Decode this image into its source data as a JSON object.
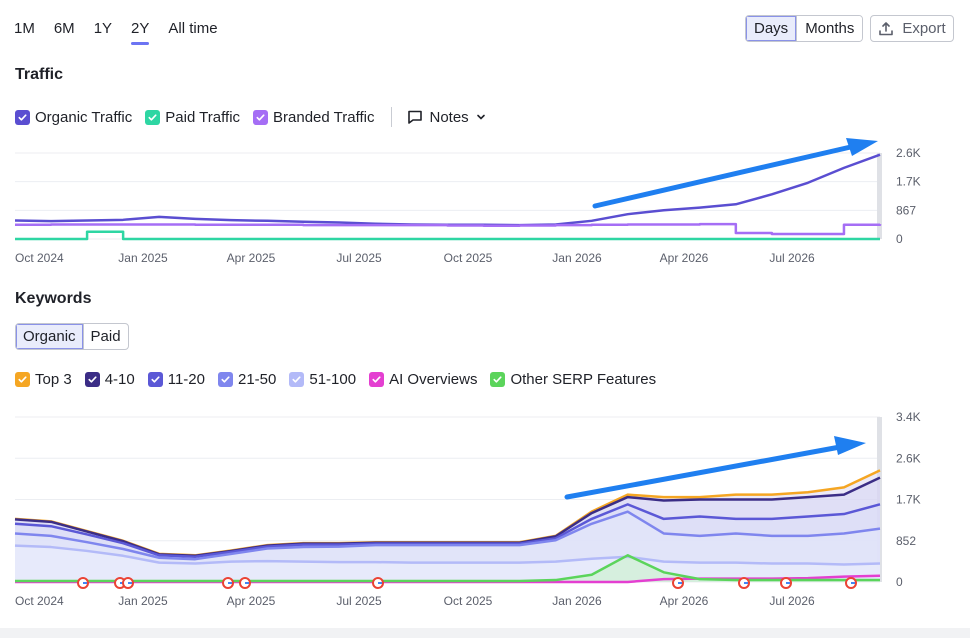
{
  "range_tabs": [
    "1M",
    "6M",
    "1Y",
    "2Y",
    "All time"
  ],
  "active_range": "2Y",
  "granularity": {
    "days": "Days",
    "months": "Months",
    "active": "Days"
  },
  "export_label": "Export",
  "traffic": {
    "title": "Traffic",
    "legend": [
      {
        "label": "Organic Traffic",
        "color": "#5a4ed1"
      },
      {
        "label": "Paid Traffic",
        "color": "#2ed6a3"
      },
      {
        "label": "Branded Traffic",
        "color": "#a56ef5"
      }
    ],
    "notes_label": "Notes"
  },
  "keywords": {
    "title": "Keywords",
    "tabs": [
      "Organic",
      "Paid"
    ],
    "active_tab": "Organic",
    "legend": [
      {
        "label": "Top 3",
        "color": "#f5a623"
      },
      {
        "label": "4-10",
        "color": "#3b2d86"
      },
      {
        "label": "11-20",
        "color": "#5b58d6"
      },
      {
        "label": "21-50",
        "color": "#7f86ee"
      },
      {
        "label": "51-100",
        "color": "#b3baf8"
      },
      {
        "label": "AI Overviews",
        "color": "#e43fd1"
      },
      {
        "label": "Other SERP Features",
        "color": "#5bd45b"
      }
    ]
  },
  "chart_data": [
    {
      "type": "line",
      "title": "Traffic",
      "x_ticks": [
        "Oct 2024",
        "Jan 2025",
        "Apr 2025",
        "Jul 2025",
        "Oct 2025",
        "Jan 2026",
        "Apr 2026",
        "Jul 2026"
      ],
      "y_ticks": [
        "2.6K",
        "1.7K",
        "867",
        "0"
      ],
      "ylim": [
        0,
        2600
      ],
      "x_months": [
        0,
        1,
        2,
        3,
        4,
        5,
        6,
        7,
        8,
        9,
        10,
        11,
        12,
        13,
        14,
        15,
        16,
        17,
        18,
        19,
        20,
        21,
        22,
        23,
        24
      ],
      "series": [
        {
          "name": "Organic Traffic",
          "color": "#5a4ed1",
          "values": [
            560,
            540,
            560,
            580,
            670,
            610,
            570,
            550,
            520,
            500,
            460,
            440,
            430,
            430,
            420,
            440,
            550,
            750,
            870,
            950,
            1050,
            1350,
            1700,
            2150,
            2550
          ]
        },
        {
          "name": "Paid Traffic",
          "color": "#2ed6a3",
          "values": [
            0,
            0,
            220,
            0,
            0,
            0,
            0,
            0,
            0,
            0,
            0,
            0,
            0,
            0,
            0,
            0,
            0,
            0,
            0,
            0,
            0,
            0,
            0,
            0,
            0
          ]
        },
        {
          "name": "Branded Traffic",
          "color": "#a56ef5",
          "values": [
            430,
            440,
            440,
            440,
            440,
            430,
            430,
            430,
            420,
            420,
            420,
            420,
            410,
            400,
            410,
            420,
            430,
            440,
            440,
            450,
            180,
            150,
            150,
            430,
            450
          ]
        }
      ]
    },
    {
      "type": "area",
      "title": "Keywords",
      "x_ticks": [
        "Oct 2024",
        "Jan 2025",
        "Apr 2025",
        "Jul 2025",
        "Oct 2025",
        "Jan 2026",
        "Apr 2026",
        "Jul 2026"
      ],
      "y_ticks": [
        "3.4K",
        "2.6K",
        "1.7K",
        "852",
        "0"
      ],
      "ylim": [
        0,
        3400
      ],
      "x_months": [
        0,
        1,
        2,
        3,
        4,
        5,
        6,
        7,
        8,
        9,
        10,
        11,
        12,
        13,
        14,
        15,
        16,
        17,
        18,
        19,
        20,
        21,
        22,
        23,
        24
      ],
      "series": [
        {
          "name": "Top 3",
          "color": "#f5a623",
          "values": [
            1300,
            1250,
            1050,
            850,
            580,
            550,
            650,
            760,
            800,
            800,
            820,
            820,
            820,
            820,
            820,
            950,
            1450,
            1800,
            1750,
            1750,
            1800,
            1800,
            1850,
            1950,
            2300
          ]
        },
        {
          "name": "4-10",
          "color": "#3b2d86",
          "values": [
            1290,
            1240,
            1040,
            840,
            570,
            540,
            640,
            750,
            790,
            790,
            810,
            810,
            810,
            810,
            810,
            940,
            1420,
            1750,
            1680,
            1700,
            1700,
            1700,
            1750,
            1800,
            2150
          ]
        },
        {
          "name": "11-20",
          "color": "#5b58d6",
          "values": [
            1200,
            1150,
            980,
            800,
            550,
            520,
            620,
            730,
            770,
            770,
            790,
            790,
            790,
            790,
            790,
            900,
            1300,
            1600,
            1300,
            1350,
            1300,
            1300,
            1350,
            1400,
            1600
          ]
        },
        {
          "name": "21-50",
          "color": "#7f86ee",
          "values": [
            1000,
            950,
            820,
            680,
            500,
            470,
            580,
            690,
            720,
            730,
            760,
            760,
            760,
            760,
            760,
            860,
            1200,
            1450,
            1000,
            950,
            1000,
            950,
            950,
            1000,
            1100
          ]
        },
        {
          "name": "51-100",
          "color": "#b3baf8",
          "values": [
            750,
            720,
            640,
            540,
            400,
            380,
            420,
            430,
            420,
            410,
            410,
            400,
            400,
            400,
            400,
            420,
            480,
            520,
            420,
            400,
            400,
            380,
            380,
            360,
            380
          ]
        },
        {
          "name": "AI Overviews",
          "color": "#e43fd1",
          "values": [
            0,
            0,
            0,
            0,
            0,
            0,
            0,
            0,
            0,
            0,
            0,
            0,
            0,
            0,
            0,
            0,
            0,
            0,
            60,
            70,
            70,
            70,
            80,
            110,
            130
          ]
        },
        {
          "name": "Other SERP Features",
          "color": "#5bd45b",
          "values": [
            20,
            20,
            20,
            20,
            20,
            20,
            20,
            20,
            20,
            20,
            20,
            20,
            20,
            20,
            20,
            40,
            150,
            550,
            200,
            60,
            40,
            40,
            40,
            40,
            40
          ]
        }
      ]
    }
  ]
}
